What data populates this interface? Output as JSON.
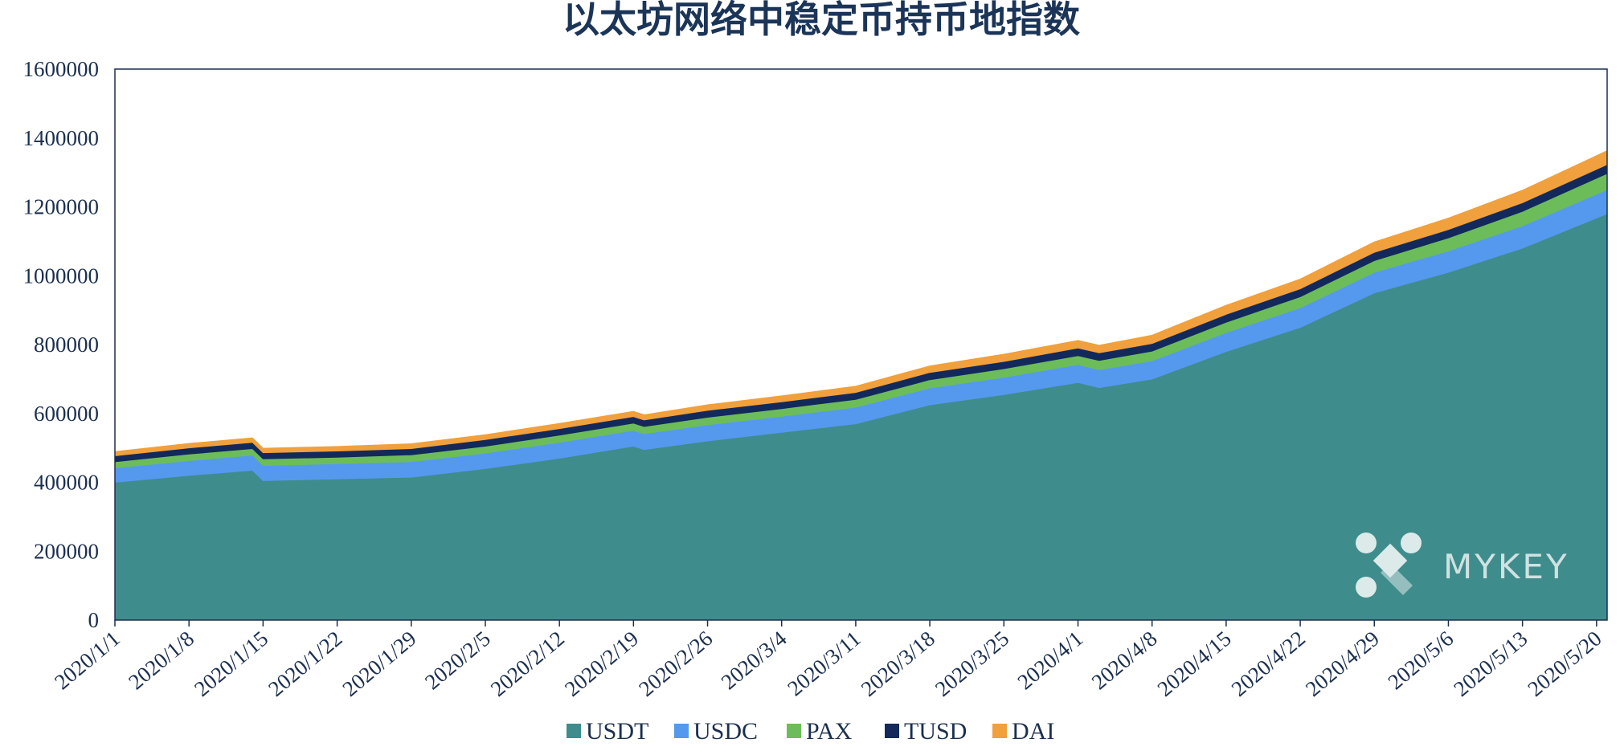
{
  "chart_data": {
    "type": "area",
    "stacked": true,
    "title": "以太坊网络中稳定币持币地指数",
    "xlabel": "",
    "ylabel": "",
    "ylim": [
      0,
      1600000
    ],
    "y_ticks": [
      "0",
      "200000",
      "400000",
      "600000",
      "800000",
      "1000000",
      "1200000",
      "1400000",
      "1600000"
    ],
    "x_range": [
      "2020/1/1",
      "2020/5/21"
    ],
    "x_ticks": [
      "2020/1/1",
      "2020/1/8",
      "2020/1/15",
      "2020/1/22",
      "2020/1/29",
      "2020/2/5",
      "2020/2/12",
      "2020/2/19",
      "2020/2/26",
      "2020/3/4",
      "2020/3/11",
      "2020/3/18",
      "2020/3/25",
      "2020/4/1",
      "2020/4/8",
      "2020/4/15",
      "2020/4/22",
      "2020/4/29",
      "2020/5/6",
      "2020/5/13",
      "2020/5/20"
    ],
    "legend_position": "bottom",
    "grid": false,
    "x": [
      "2020/1/1",
      "2020/1/8",
      "2020/1/14",
      "2020/1/15",
      "2020/1/22",
      "2020/1/29",
      "2020/2/5",
      "2020/2/12",
      "2020/2/19",
      "2020/2/20",
      "2020/2/26",
      "2020/3/4",
      "2020/3/11",
      "2020/3/18",
      "2020/3/25",
      "2020/4/1",
      "2020/4/3",
      "2020/4/8",
      "2020/4/15",
      "2020/4/22",
      "2020/4/29",
      "2020/5/6",
      "2020/5/13",
      "2020/5/21"
    ],
    "series": [
      {
        "name": "USDT",
        "color": "#3f8c8c",
        "values": [
          400000,
          420000,
          435000,
          405000,
          410000,
          415000,
          440000,
          470000,
          505000,
          495000,
          520000,
          545000,
          570000,
          625000,
          655000,
          690000,
          675000,
          700000,
          780000,
          850000,
          950000,
          1010000,
          1080000,
          1180000
        ]
      },
      {
        "name": "USDC",
        "color": "#5599ee",
        "values": [
          42000,
          43000,
          44000,
          44000,
          44000,
          45000,
          45000,
          46000,
          46000,
          46000,
          47000,
          47000,
          48000,
          49000,
          50000,
          52000,
          52000,
          53000,
          55000,
          57000,
          60000,
          62000,
          65000,
          70000
        ]
      },
      {
        "name": "PAX",
        "color": "#6cbd5a",
        "values": [
          18000,
          19000,
          19000,
          19000,
          19000,
          20000,
          20000,
          21000,
          21000,
          21000,
          22000,
          22000,
          23000,
          24000,
          25000,
          26000,
          27000,
          28000,
          30000,
          32000,
          34000,
          38000,
          42000,
          47000
        ]
      },
      {
        "name": "TUSD",
        "color": "#13295b",
        "values": [
          17000,
          18000,
          18000,
          18000,
          18000,
          18000,
          19000,
          19000,
          19000,
          19000,
          20000,
          20000,
          20000,
          21000,
          21000,
          22000,
          22000,
          22000,
          23000,
          23000,
          24000,
          24000,
          25000,
          26000
        ]
      },
      {
        "name": "DAI",
        "color": "#f0a03c",
        "values": [
          12000,
          13000,
          13000,
          13000,
          13000,
          14000,
          14000,
          15000,
          15000,
          15000,
          16000,
          17000,
          18000,
          19000,
          21000,
          22000,
          22000,
          24000,
          26000,
          28000,
          30000,
          33000,
          36000,
          40000
        ]
      }
    ]
  },
  "watermark": {
    "text": "MYKEY"
  }
}
